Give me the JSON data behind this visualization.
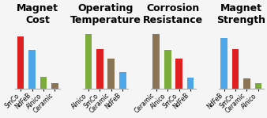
{
  "charts": [
    {
      "title": "Magnet\nCost",
      "categories": [
        "SmCo",
        "NdFeB",
        "Alnico",
        "Ceramic"
      ],
      "values": [
        95,
        70,
        22,
        10
      ],
      "colors": [
        "#e02020",
        "#4da6e8",
        "#7cad3c",
        "#8b7355"
      ]
    },
    {
      "title": "Operating\nTemperature",
      "categories": [
        "Alnico",
        "SmCo",
        "Ceramic",
        "NdFeB"
      ],
      "values": [
        100,
        72,
        55,
        30
      ],
      "colors": [
        "#7cad3c",
        "#e02020",
        "#8b7355",
        "#4da6e8"
      ]
    },
    {
      "title": "Corrosion\nResistance",
      "categories": [
        "Ceramic",
        "Alnico",
        "SmCo",
        "NdFeB"
      ],
      "values": [
        100,
        70,
        55,
        20
      ],
      "colors": [
        "#8b7355",
        "#7cad3c",
        "#e02020",
        "#4da6e8"
      ]
    },
    {
      "title": "Magnet\nStrength",
      "categories": [
        "NdFeB",
        "SmCo",
        "Ceramic",
        "Alnico"
      ],
      "values": [
        92,
        72,
        18,
        10
      ],
      "colors": [
        "#4da6e8",
        "#e02020",
        "#8b7355",
        "#7cad3c"
      ]
    }
  ],
  "background_color": "#f5f5f5",
  "title_fontsize": 9,
  "tick_fontsize": 5.5,
  "bar_width": 0.6
}
